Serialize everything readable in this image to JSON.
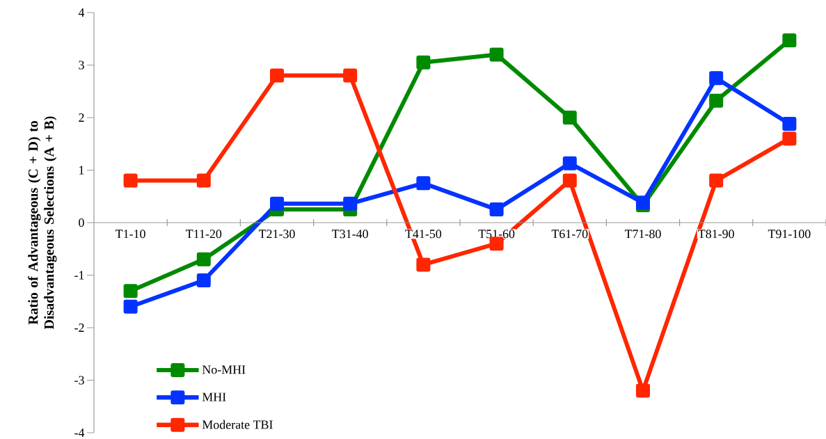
{
  "chart_data": {
    "type": "line",
    "ylabel": "Ratio of Advantageous (C + D) to Disadvantageous Selections (A + B)",
    "categories": [
      "T1-10",
      "T11-20",
      "T21-30",
      "T31-40",
      "T41-50",
      "T51-60",
      "T61-70",
      "T71-80",
      "T81-90",
      "T91-100"
    ],
    "series": [
      {
        "name": "No-MHI",
        "color": "#008a00",
        "values": [
          -1.3,
          -0.7,
          0.25,
          0.25,
          3.05,
          3.2,
          2.0,
          0.33,
          2.32,
          3.47
        ]
      },
      {
        "name": "MHI",
        "color": "#0433ff",
        "values": [
          -1.6,
          -1.1,
          0.36,
          0.36,
          0.75,
          0.25,
          1.13,
          0.38,
          2.75,
          1.88
        ]
      },
      {
        "name": "Moderate TBI",
        "color": "#ff2600",
        "values": [
          0.8,
          0.8,
          2.8,
          2.8,
          -0.8,
          -0.4,
          0.8,
          -3.2,
          0.8,
          1.6
        ]
      }
    ],
    "ylim": [
      -4,
      4
    ],
    "yticks": [
      -4,
      -3,
      -2,
      -1,
      0,
      1,
      2,
      3,
      4
    ],
    "grid": false,
    "legend": "bottom left",
    "marker": "square",
    "line_style": "solid"
  }
}
